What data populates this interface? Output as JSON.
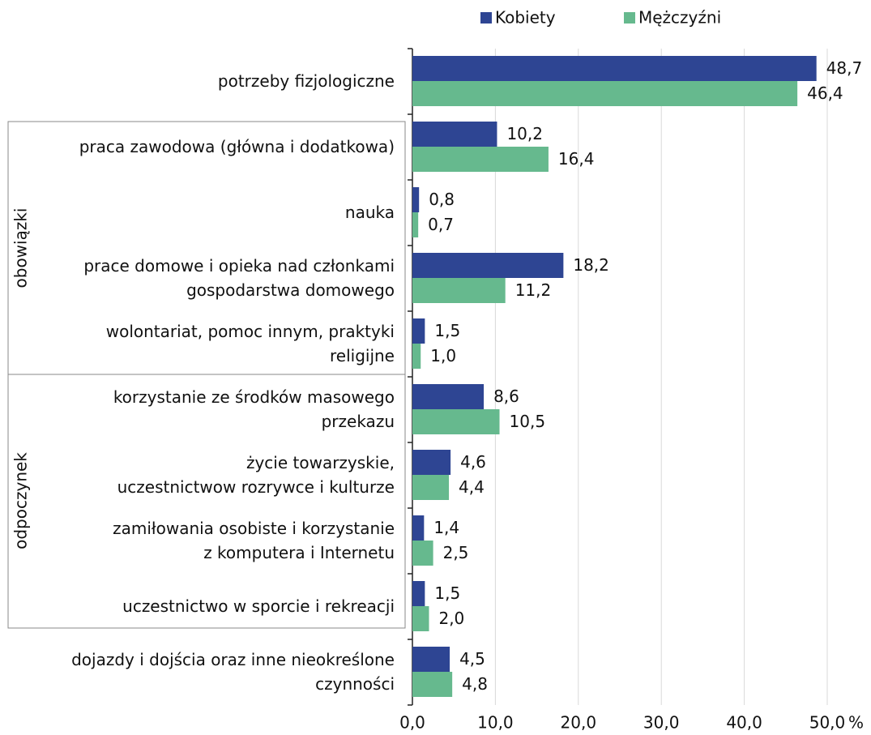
{
  "chart_data": {
    "type": "hbar",
    "categories": [
      "potrzeby fizjologiczne",
      "praca zawodowa (główna i dodatkowa)",
      "nauka",
      "prace domowe i opieka nad członkami\ngospodarstwa domowego",
      "wolontariat, pomoc innym, praktyki\nreligijne",
      "korzystanie ze środków masowego\nprzekazu",
      "życie towarzyskie,\nuczestnictwow rozrywce i kulturze",
      "zamiłowania osobiste i korzystanie\nz komputera i Internetu",
      "uczestnictwo w sporcie i rekreacji",
      "dojazdy i dojścia oraz inne nieokreślone\nczynności"
    ],
    "series": [
      {
        "name": "Kobiety",
        "color": "#2e4593",
        "values": [
          48.7,
          10.2,
          0.8,
          18.2,
          1.5,
          8.6,
          4.6,
          1.4,
          1.5,
          4.5
        ],
        "value_labels": [
          "48,7",
          "10,2",
          "0,8",
          "18,2",
          "1,5",
          "8,6",
          "4,6",
          "1,4",
          "1,5",
          "4,5"
        ]
      },
      {
        "name": "Mężczyźni",
        "color": "#66b98e",
        "values": [
          46.4,
          16.4,
          0.7,
          11.2,
          1.0,
          10.5,
          4.4,
          2.5,
          2.0,
          4.8
        ],
        "value_labels": [
          "46,4",
          "16,4",
          "0,7",
          "11,2",
          "1,0",
          "10,5",
          "4,4",
          "2,5",
          "2,0",
          "4,8"
        ]
      }
    ],
    "groups": [
      "obowiązki",
      "odpoczynek"
    ],
    "xlim": [
      0,
      50
    ],
    "xticks": [
      {
        "value": 0,
        "label": "0,0"
      },
      {
        "value": 10,
        "label": "10,0"
      },
      {
        "value": 20,
        "label": "20,0"
      },
      {
        "value": 30,
        "label": "30,0"
      },
      {
        "value": 40,
        "label": "40,0"
      },
      {
        "value": 50,
        "label": "50,0"
      }
    ],
    "x_unit": "%",
    "grid": true,
    "legend": "top"
  }
}
